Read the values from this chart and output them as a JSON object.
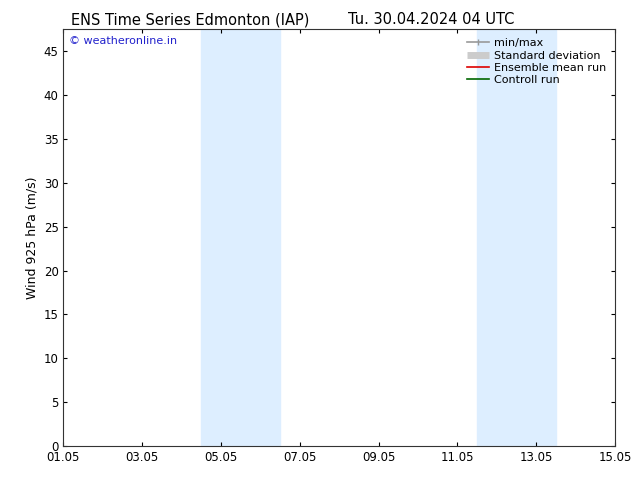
{
  "title_left": "ENS Time Series Edmonton (IAP)",
  "title_right": "Tu. 30.04.2024 04 UTC",
  "ylabel": "Wind 925 hPa (m/s)",
  "ylim": [
    0,
    47.5
  ],
  "yticks": [
    0,
    5,
    10,
    15,
    20,
    25,
    30,
    35,
    40,
    45
  ],
  "xtick_labels": [
    "01.05",
    "03.05",
    "05.05",
    "07.05",
    "09.05",
    "11.05",
    "13.05",
    "15.05"
  ],
  "xtick_positions": [
    0,
    2,
    4,
    6,
    8,
    10,
    12,
    14
  ],
  "xlim": [
    0,
    14
  ],
  "shade_bands": [
    {
      "xstart": 3.5,
      "xend": 5.5
    },
    {
      "xstart": 10.5,
      "xend": 12.5
    }
  ],
  "shade_color": "#ddeeff",
  "background_color": "#ffffff",
  "watermark_text": "© weatheronline.in",
  "watermark_color": "#2222cc",
  "legend_items": [
    {
      "label": "min/max",
      "color": "#999999",
      "lw": 1.2
    },
    {
      "label": "Standard deviation",
      "color": "#cccccc",
      "lw": 5
    },
    {
      "label": "Ensemble mean run",
      "color": "#dd0000",
      "lw": 1.2
    },
    {
      "label": "Controll run",
      "color": "#006600",
      "lw": 1.2
    }
  ],
  "title_fontsize": 10.5,
  "ylabel_fontsize": 9,
  "tick_fontsize": 8.5,
  "legend_fontsize": 8,
  "watermark_fontsize": 8,
  "figsize": [
    6.34,
    4.9
  ],
  "dpi": 100
}
